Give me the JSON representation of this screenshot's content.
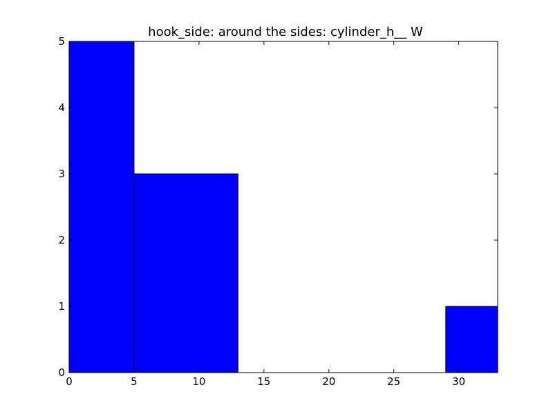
{
  "chart_data": {
    "type": "bar",
    "title": "hook_side: around the sides: cylinder_h__ W",
    "xlabel": "",
    "ylabel": "",
    "xlim": [
      0,
      33
    ],
    "ylim": [
      0,
      5
    ],
    "xticks": [
      0,
      5,
      10,
      15,
      20,
      25,
      30
    ],
    "yticks": [
      0,
      1,
      2,
      3,
      4,
      5
    ],
    "bars": [
      {
        "x_start": 0,
        "x_end": 5,
        "value": 5
      },
      {
        "x_start": 5,
        "x_end": 13,
        "value": 3
      },
      {
        "x_start": 29,
        "x_end": 33,
        "value": 1
      }
    ],
    "bar_color": "#0000ff",
    "edge_color": "#000000",
    "grid": false,
    "legend": false
  }
}
